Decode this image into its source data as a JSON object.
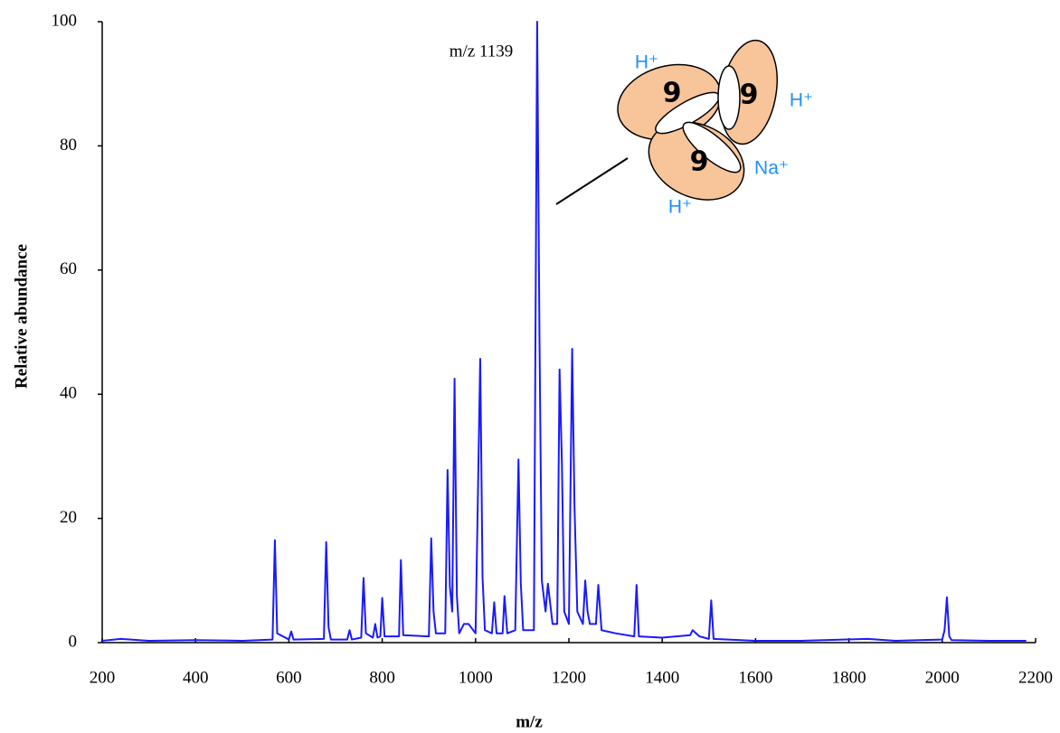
{
  "chart_data": {
    "type": "line",
    "x_label": "m/z",
    "y_label": "Relative abundance",
    "xlim": [
      200,
      2200
    ],
    "ylim": [
      0,
      100
    ],
    "xticks": [
      200,
      400,
      600,
      800,
      1000,
      1200,
      1400,
      1600,
      1800,
      2000,
      2200
    ],
    "yticks": [
      0,
      20,
      40,
      60,
      80,
      100
    ],
    "grid": false,
    "annotations": {
      "peak_label": "m/z 1139",
      "ions": [
        "H⁺",
        "H⁺",
        "Na⁺",
        "H⁺"
      ],
      "monomers": [
        "9",
        "9",
        "9"
      ]
    },
    "x": [
      200,
      240,
      300,
      400,
      500,
      565,
      570,
      575,
      600,
      605,
      610,
      675,
      680,
      685,
      690,
      725,
      730,
      735,
      755,
      760,
      765,
      780,
      785,
      790,
      796,
      800,
      805,
      836,
      840,
      845,
      900,
      905,
      910,
      915,
      935,
      940,
      945,
      950,
      955,
      960,
      965,
      975,
      985,
      1000,
      1010,
      1015,
      1020,
      1035,
      1040,
      1045,
      1058,
      1062,
      1068,
      1085,
      1092,
      1097,
      1102,
      1125,
      1132,
      1137,
      1142,
      1150,
      1155,
      1165,
      1175,
      1180,
      1185,
      1190,
      1200,
      1207,
      1212,
      1218,
      1230,
      1235,
      1240,
      1245,
      1258,
      1263,
      1270,
      1300,
      1340,
      1345,
      1350,
      1400,
      1460,
      1465,
      1480,
      1500,
      1505,
      1510,
      1600,
      1700,
      1840,
      1900,
      2000,
      2005,
      2010,
      2015,
      2020,
      2100,
      2180
    ],
    "series": [
      {
        "name": "spectrum",
        "color": "#1a1aff",
        "values": [
          0.3,
          0.6,
          0.3,
          0.4,
          0.3,
          0.5,
          16.5,
          1.5,
          0.5,
          1.8,
          0.5,
          0.6,
          16.2,
          2.5,
          0.5,
          0.5,
          2,
          0.5,
          0.8,
          10.4,
          1.5,
          0.8,
          3,
          0.8,
          1,
          7.2,
          1,
          1,
          13.3,
          1.2,
          1,
          16.8,
          5,
          1.5,
          1.5,
          27.8,
          9,
          5,
          42.5,
          7.5,
          1.5,
          3,
          3,
          1.5,
          45.7,
          10.5,
          2,
          1.5,
          6.5,
          1.5,
          1.5,
          7.5,
          1.5,
          2,
          29.5,
          9.5,
          2,
          2,
          100,
          49,
          10,
          5,
          9.5,
          3,
          3,
          44,
          29,
          5,
          3,
          47.3,
          22,
          5,
          3,
          10,
          5,
          3,
          3,
          9.3,
          2,
          1.5,
          1,
          9.3,
          1,
          0.8,
          1.2,
          2,
          1,
          0.6,
          6.8,
          0.6,
          0.3,
          0.3,
          0.6,
          0.3,
          0.5,
          2,
          7.3,
          1,
          0.4,
          0.3,
          0.3
        ]
      }
    ]
  }
}
